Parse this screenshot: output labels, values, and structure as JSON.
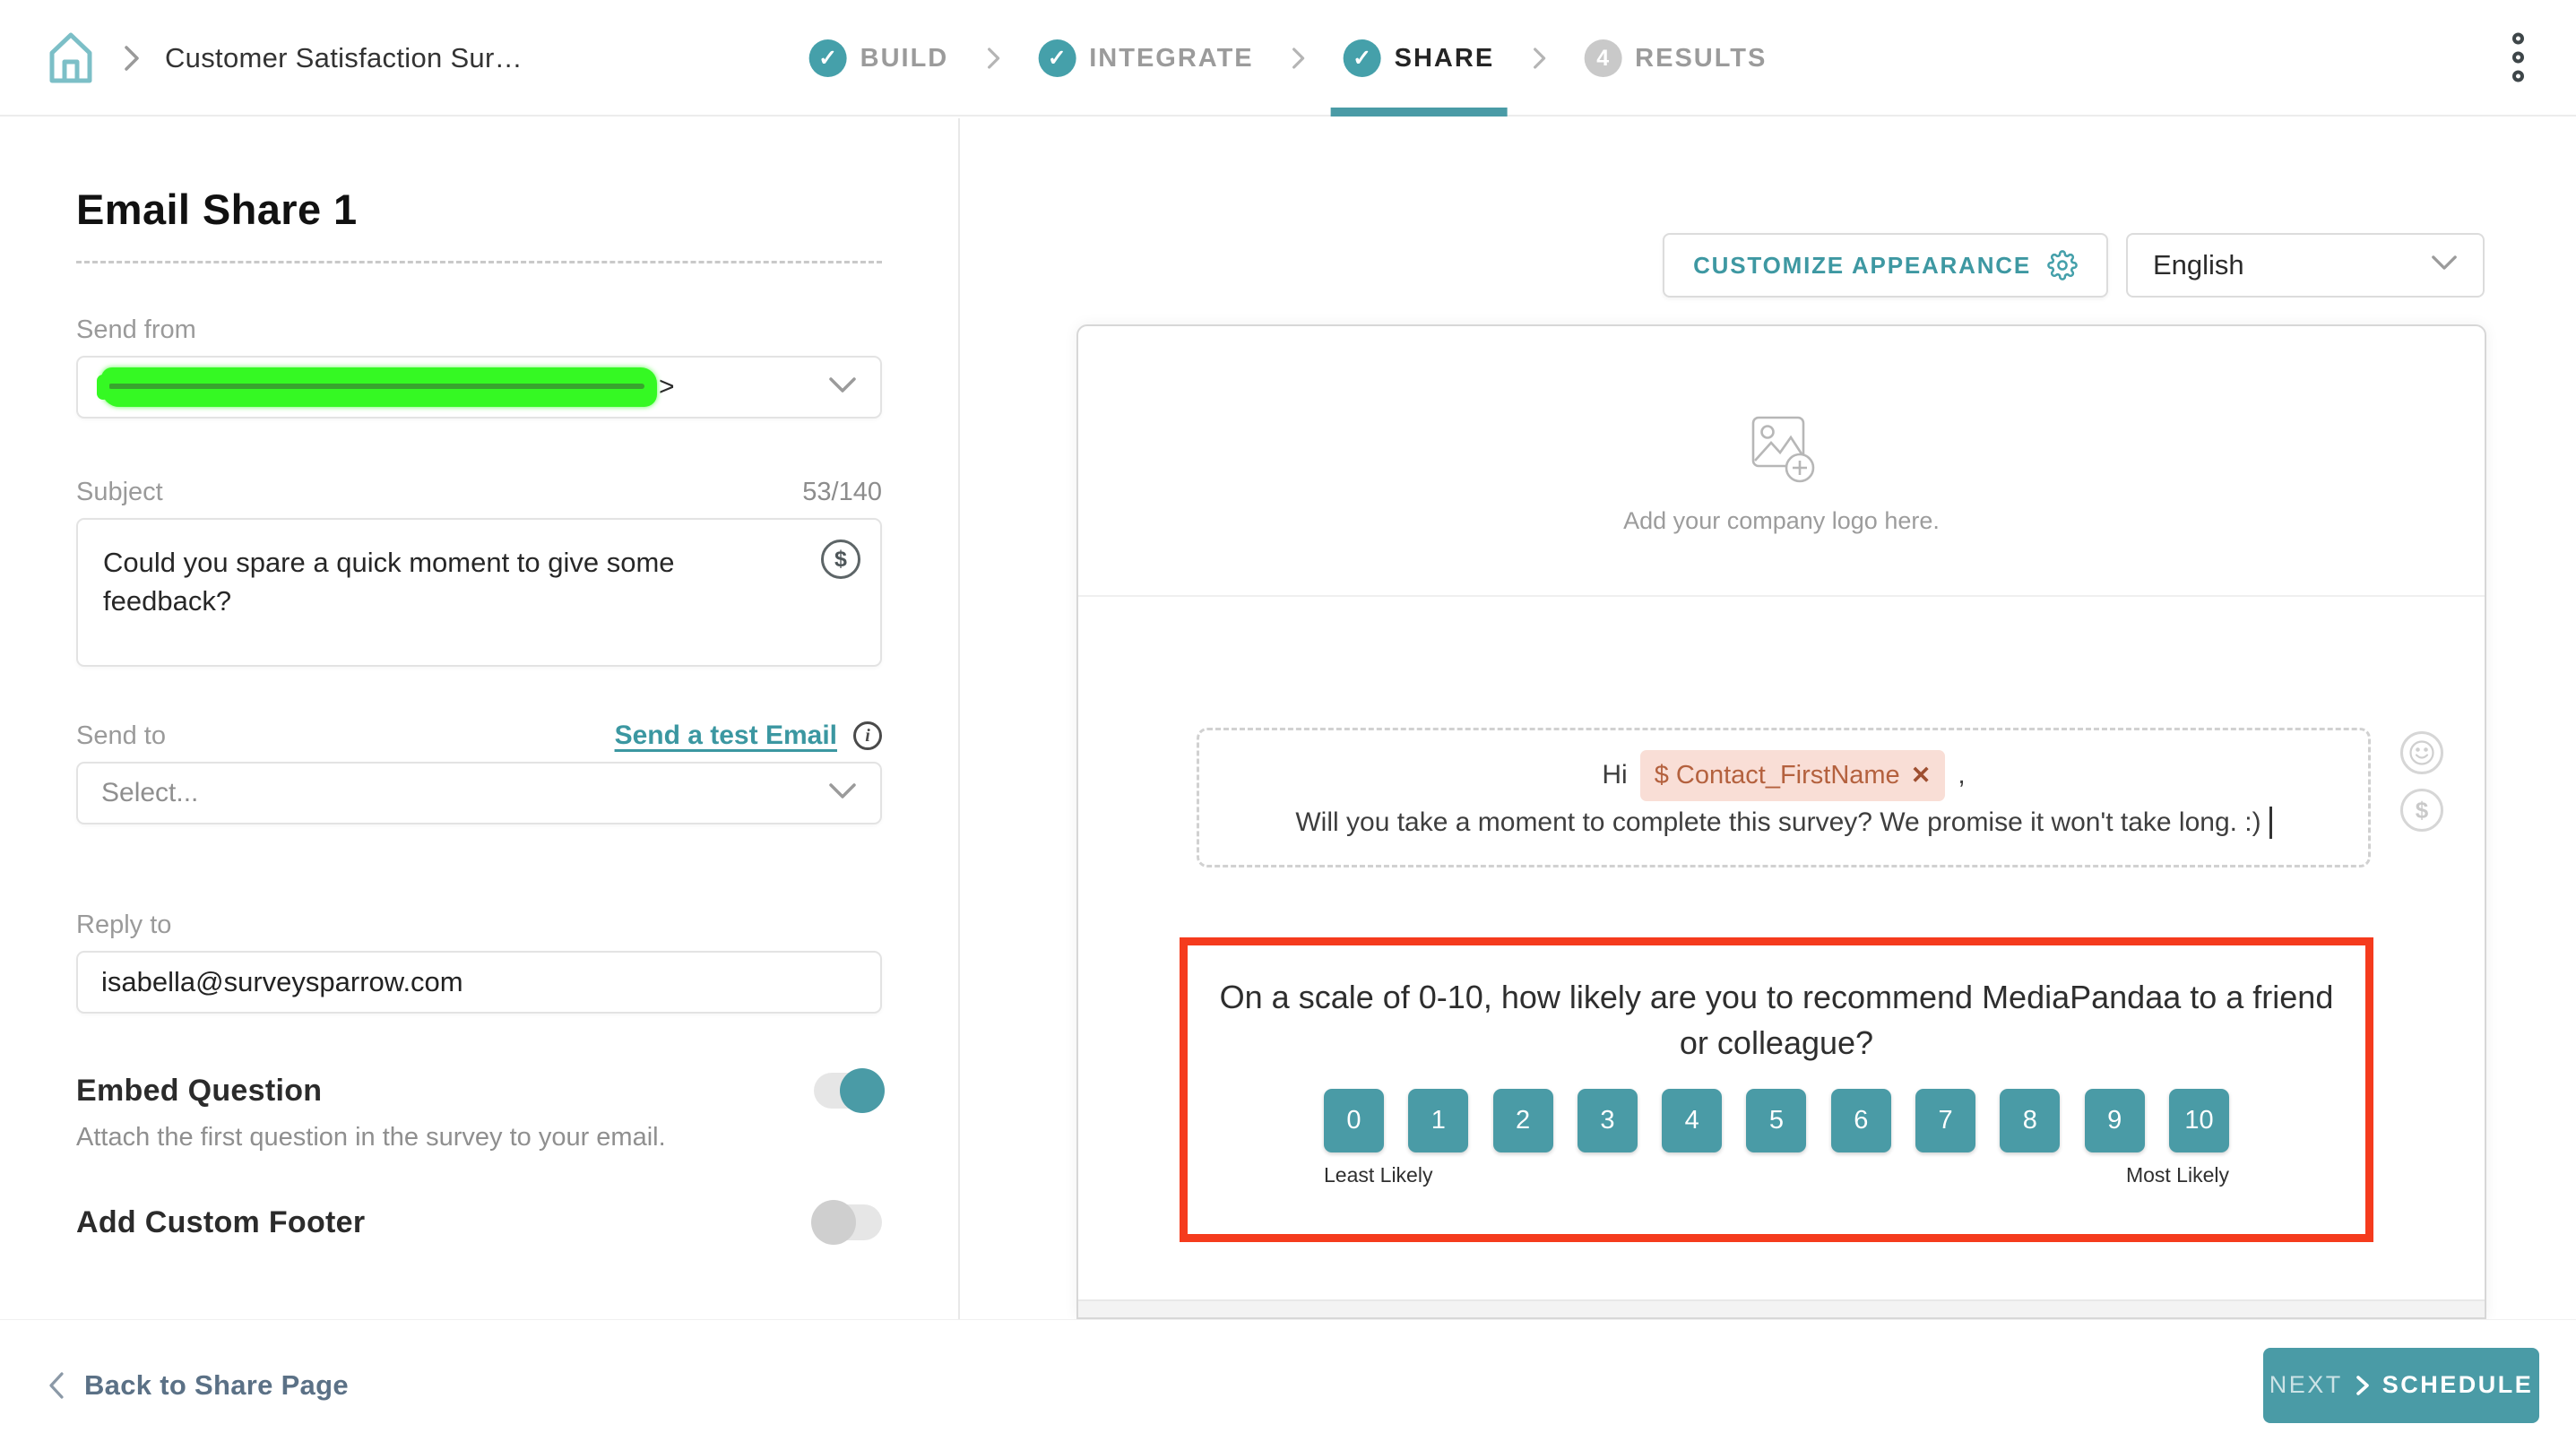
{
  "header": {
    "breadcrumb": "Customer Satisfaction Sur…",
    "steps": [
      {
        "label": "BUILD",
        "status": "done"
      },
      {
        "label": "INTEGRATE",
        "status": "done"
      },
      {
        "label": "SHARE",
        "status": "active"
      },
      {
        "label": "RESULTS",
        "status": "upcoming",
        "number": "4"
      }
    ]
  },
  "left_panel": {
    "title": "Email Share 1",
    "send_from": {
      "label": "Send from",
      "visible_suffix": ">"
    },
    "subject": {
      "label": "Subject",
      "counter": "53/140",
      "value": "Could you spare a quick moment to give some feedback?"
    },
    "send_to": {
      "label": "Send to",
      "test_link": "Send a test Email",
      "placeholder": "Select..."
    },
    "reply_to": {
      "label": "Reply to",
      "value": "isabella@surveysparrow.com"
    },
    "embed_question": {
      "label": "Embed Question",
      "description": "Attach the first question in the survey to your email.",
      "enabled": true
    },
    "custom_footer": {
      "label": "Add Custom Footer",
      "enabled": false
    }
  },
  "preview": {
    "customize_label": "CUSTOMIZE APPEARANCE",
    "language": "English",
    "logo_hint": "Add your company logo here.",
    "greeting": {
      "prefix": "Hi",
      "token_label": "$ Contact_FirstName",
      "token_remove": "✕",
      "after_token": ",",
      "body": "Will you take a moment to complete this survey? We promise it won't take long. :)"
    },
    "question": {
      "text": "On a scale of 0-10, how likely are you to recommend MediaPandaa to a friend or colleague?",
      "scale": [
        "0",
        "1",
        "2",
        "3",
        "4",
        "5",
        "6",
        "7",
        "8",
        "9",
        "10"
      ],
      "min_label": "Least Likely",
      "max_label": "Most Likely"
    }
  },
  "footer": {
    "back_label": "Back to Share Page",
    "next_prefix": "NEXT",
    "next_label": "SCHEDULE"
  },
  "colors": {
    "accent": "#4a9ba6",
    "highlight_red": "#f53b1d",
    "token_bg": "#f9ded6",
    "token_text": "#b4613e",
    "redaction_green": "#35f923"
  }
}
